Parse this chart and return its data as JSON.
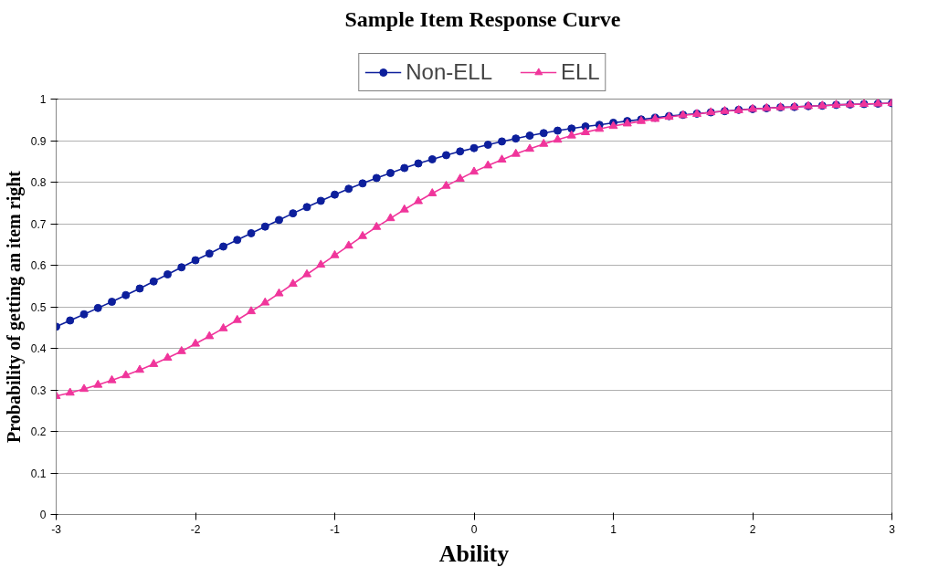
{
  "chart_data": {
    "type": "line",
    "title": "Sample Item Response Curve",
    "xlabel": "Ability",
    "ylabel": "Probability of getting an item right",
    "x": [
      -3.0,
      -2.9,
      -2.8,
      -2.7,
      -2.6,
      -2.5,
      -2.4,
      -2.3,
      -2.2,
      -2.1,
      -2.0,
      -1.9,
      -1.8,
      -1.7,
      -1.6,
      -1.5,
      -1.4,
      -1.3,
      -1.2,
      -1.1,
      -1.0,
      -0.9,
      -0.8,
      -0.7,
      -0.6,
      -0.5,
      -0.4,
      -0.3,
      -0.2,
      -0.1,
      0.0,
      0.1,
      0.2,
      0.3,
      0.4,
      0.5,
      0.6,
      0.7,
      0.8,
      0.9,
      1.0,
      1.1,
      1.2,
      1.3,
      1.4,
      1.5,
      1.6,
      1.7,
      1.8,
      1.9,
      2.0,
      2.1,
      2.2,
      2.3,
      2.4,
      2.5,
      2.6,
      2.7,
      2.8,
      2.9,
      3.0
    ],
    "series": [
      {
        "name": "Non-ELL",
        "color": "#0d1f9c",
        "marker": "circle",
        "values": [
          0.452,
          0.467,
          0.482,
          0.497,
          0.512,
          0.528,
          0.544,
          0.561,
          0.578,
          0.595,
          0.612,
          0.628,
          0.645,
          0.661,
          0.677,
          0.693,
          0.709,
          0.725,
          0.74,
          0.755,
          0.77,
          0.784,
          0.797,
          0.81,
          0.822,
          0.834,
          0.845,
          0.855,
          0.865,
          0.874,
          0.882,
          0.89,
          0.898,
          0.905,
          0.912,
          0.918,
          0.924,
          0.929,
          0.934,
          0.938,
          0.943,
          0.947,
          0.951,
          0.955,
          0.959,
          0.962,
          0.965,
          0.968,
          0.971,
          0.974,
          0.976,
          0.978,
          0.98,
          0.981,
          0.983,
          0.984,
          0.986,
          0.987,
          0.988,
          0.989,
          0.99
        ]
      },
      {
        "name": "ELL",
        "color": "#f0359b",
        "marker": "triangle",
        "values": [
          0.285,
          0.293,
          0.302,
          0.312,
          0.323,
          0.335,
          0.348,
          0.362,
          0.377,
          0.393,
          0.411,
          0.429,
          0.448,
          0.468,
          0.489,
          0.51,
          0.532,
          0.555,
          0.578,
          0.601,
          0.624,
          0.647,
          0.67,
          0.692,
          0.713,
          0.734,
          0.754,
          0.773,
          0.791,
          0.808,
          0.825,
          0.84,
          0.854,
          0.868,
          0.88,
          0.892,
          0.902,
          0.912,
          0.92,
          0.928,
          0.935,
          0.941,
          0.947,
          0.952,
          0.957,
          0.961,
          0.964,
          0.968,
          0.971,
          0.973,
          0.976,
          0.978,
          0.98,
          0.981,
          0.983,
          0.984,
          0.986,
          0.987,
          0.988,
          0.989,
          0.99
        ]
      }
    ],
    "xlim": [
      -3,
      3
    ],
    "xticks": [
      -3,
      -2,
      -1,
      0,
      1,
      2,
      3
    ],
    "ylim": [
      0,
      1
    ],
    "yticks": [
      0,
      0.1,
      0.2,
      0.3,
      0.4,
      0.5,
      0.6,
      0.7,
      0.8,
      0.9,
      1
    ],
    "grid": "y",
    "legend": "top",
    "line_style": "solid"
  }
}
